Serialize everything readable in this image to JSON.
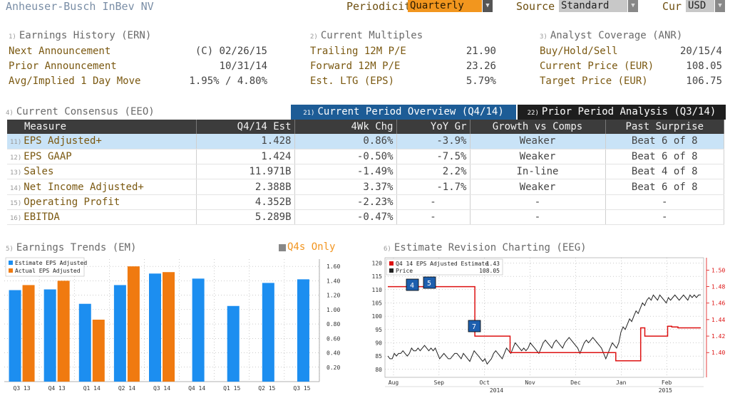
{
  "header": {
    "company": "Anheuser-Busch InBev NV",
    "periodicity_label": "Periodicity",
    "periodicity_value": "Quarterly",
    "source_label": "Source",
    "source_value": "Standard",
    "cur_label": "Cur",
    "cur_value": "USD"
  },
  "earnings_history": {
    "num": "1)",
    "title": "Earnings History (ERN)",
    "rows": [
      {
        "label": "Next Announcement",
        "value": "(C)  02/26/15"
      },
      {
        "label": "Prior Announcement",
        "value": "10/31/14"
      },
      {
        "label": "Avg/Implied 1 Day Move",
        "value": "1.95% / 4.80%"
      }
    ]
  },
  "current_multiples": {
    "num": "2)",
    "title": "Current Multiples",
    "rows": [
      {
        "label": "Trailing 12M P/E",
        "value": "21.90"
      },
      {
        "label": "Forward 12M P/E",
        "value": "23.26"
      },
      {
        "label": "Est. LTG (EPS)",
        "value": "5.79%"
      }
    ]
  },
  "analyst_coverage": {
    "num": "3)",
    "title": "Analyst Coverage (ANR)",
    "rows": [
      {
        "label": "Buy/Hold/Sell",
        "value": "20/15/4"
      },
      {
        "label": "Current Price (EUR)",
        "value": "108.05"
      },
      {
        "label": "Target Price (EUR)",
        "value": "106.75"
      }
    ]
  },
  "consensus": {
    "num": "4)",
    "title": "Current Consensus (EEO)",
    "tab1_num": "21)",
    "tab1_label": "Current Period Overview (Q4/14)",
    "tab2_num": "22)",
    "tab2_label": "Prior Period Analysis (Q3/14)",
    "columns": [
      "Measure",
      "Q4/14 Est",
      "4Wk Chg",
      "YoY Gr",
      "Growth vs Comps",
      "Past Surprise"
    ],
    "rows": [
      {
        "num": "11)",
        "measure": "EPS Adjusted+",
        "est": "1.428",
        "chg": "0.86%",
        "yoy": "-3.9%",
        "comps": "Weaker",
        "surprise": "Beat 6 of 8"
      },
      {
        "num": "12)",
        "measure": "EPS GAAP",
        "est": "1.424",
        "chg": "-0.50%",
        "yoy": "-7.5%",
        "comps": "Weaker",
        "surprise": "Beat 6 of 8"
      },
      {
        "num": "13)",
        "measure": "Sales",
        "est": "11.971B",
        "chg": "-1.49%",
        "yoy": "2.2%",
        "comps": "In-line",
        "surprise": "Beat 4 of 8"
      },
      {
        "num": "14)",
        "measure": "Net Income Adjusted+",
        "est": "2.388B",
        "chg": "3.37%",
        "yoy": "-1.7%",
        "comps": "Weaker",
        "surprise": "Beat 6 of 8"
      },
      {
        "num": "15)",
        "measure": "Operating Profit",
        "est": "4.352B",
        "chg": "-2.23%",
        "yoy": "-",
        "comps": "-",
        "surprise": "-"
      },
      {
        "num": "16)",
        "measure": "EBITDA",
        "est": "5.289B",
        "chg": "-0.47%",
        "yoy": "-",
        "comps": "-",
        "surprise": "-"
      }
    ]
  },
  "trends": {
    "num": "5)",
    "title": "Earnings Trends (EM)",
    "q4s_label": "Q4s Only"
  },
  "revision": {
    "num": "6)",
    "title": "Estimate Revision Charting (EEG)"
  },
  "colors": {
    "estimate": "#1c8ef0",
    "actual": "#f07a10",
    "price": "#222222",
    "revision": "#dd1111"
  },
  "chart_data": [
    {
      "type": "bar",
      "categories": [
        "Q3 13",
        "Q4 13",
        "Q1 14",
        "Q2 14",
        "Q3 14",
        "Q4 14",
        "Q1 15",
        "Q2 15",
        "Q3 15"
      ],
      "series": [
        {
          "name": "Estimate EPS Adjusted",
          "values": [
            1.27,
            1.28,
            1.08,
            1.34,
            1.5,
            1.43,
            1.05,
            1.37,
            1.42
          ]
        },
        {
          "name": "Actual EPS Adjusted",
          "values": [
            1.34,
            1.4,
            0.86,
            1.6,
            1.52,
            null,
            null,
            null,
            null
          ]
        }
      ],
      "ylim": [
        0,
        1.7
      ],
      "yticks": [
        "0.20",
        "0.40",
        "0.60",
        "0.80",
        "1.00",
        "1.20",
        "1.40",
        "1.60"
      ],
      "grid": true,
      "legend": "top-left"
    },
    {
      "type": "line",
      "x_labels": [
        "Aug",
        "Sep",
        "Oct",
        "Nov",
        "Dec",
        "Jan",
        "Feb"
      ],
      "years": [
        "2014",
        "2015"
      ],
      "series": [
        {
          "name": "Q4 14 EPS Adjusted Estimate",
          "last": "1.43",
          "axis": "right",
          "values": [
            1.48,
            1.48,
            1.48,
            1.48,
            1.48,
            1.48,
            1.48,
            1.48,
            1.48,
            1.48,
            1.48,
            1.48,
            1.48,
            1.48,
            1.48,
            1.48,
            1.48,
            1.48,
            1.48,
            1.48,
            1.48,
            1.48,
            1.48,
            1.48,
            1.48,
            1.48,
            1.48,
            1.48,
            1.48,
            1.48,
            1.48,
            1.48,
            1.48,
            1.48,
            1.48,
            1.48,
            1.48,
            1.48,
            1.48,
            1.48,
            1.48,
            1.48,
            1.42,
            1.42,
            1.42,
            1.42,
            1.42,
            1.42,
            1.42,
            1.42,
            1.42,
            1.42,
            1.42,
            1.42,
            1.42,
            1.42,
            1.42,
            1.42,
            1.42,
            1.4,
            1.4,
            1.4,
            1.4,
            1.4,
            1.4,
            1.4,
            1.4,
            1.4,
            1.4,
            1.4,
            1.4,
            1.4,
            1.4,
            1.4,
            1.4,
            1.4,
            1.4,
            1.4,
            1.4,
            1.4,
            1.4,
            1.4,
            1.4,
            1.4,
            1.4,
            1.4,
            1.4,
            1.4,
            1.4,
            1.4,
            1.4,
            1.4,
            1.4,
            1.4,
            1.4,
            1.4,
            1.4,
            1.4,
            1.4,
            1.4,
            1.4,
            1.4,
            1.4,
            1.4,
            1.4,
            1.4,
            1.4,
            1.4,
            1.4,
            1.4,
            1.39,
            1.39,
            1.39,
            1.39,
            1.39,
            1.39,
            1.39,
            1.39,
            1.39,
            1.39,
            1.39,
            1.39,
            1.43,
            1.43,
            1.42,
            1.42,
            1.42,
            1.42,
            1.42,
            1.42,
            1.42,
            1.42,
            1.42,
            1.42,
            1.42,
            1.432,
            1.432,
            1.431,
            1.431,
            1.431,
            1.43,
            1.43,
            1.43,
            1.43,
            1.43,
            1.43,
            1.43,
            1.43,
            1.43,
            1.43,
            1.43,
            1.43
          ]
        },
        {
          "name": "Price",
          "last": "108.05",
          "axis": "left",
          "values": [
            85,
            84,
            84,
            86,
            85,
            86,
            86,
            87,
            86,
            85,
            86,
            88,
            87,
            87,
            88,
            87,
            88,
            89,
            88,
            87,
            88,
            87,
            88,
            86,
            84,
            85,
            86,
            85,
            84,
            84,
            85,
            86,
            86,
            85,
            84,
            86,
            85,
            84,
            83,
            85,
            87,
            86,
            85,
            84,
            83,
            84,
            82,
            83,
            84,
            86,
            87,
            86,
            85,
            84,
            86,
            88,
            87,
            86,
            88,
            90,
            89,
            88,
            87,
            88,
            87,
            88,
            90,
            89,
            88,
            87,
            86,
            88,
            90,
            91,
            90,
            89,
            88,
            90,
            91,
            90,
            89,
            88,
            90,
            91,
            92,
            91,
            90,
            89,
            88,
            86,
            88,
            90,
            91,
            90,
            91,
            92,
            91,
            90,
            89,
            88,
            86,
            84,
            86,
            88,
            90,
            89,
            88,
            90,
            94,
            96,
            95,
            97,
            99,
            98,
            100,
            102,
            101,
            103,
            105,
            104,
            106,
            107,
            106,
            108,
            107,
            106,
            108,
            107,
            106,
            105,
            107,
            106,
            107,
            108,
            107,
            106,
            107,
            108,
            107,
            106,
            108,
            107,
            108,
            107,
            108,
            108
          ]
        }
      ],
      "ylim_left": [
        77,
        122
      ],
      "yticks_left": [
        "80",
        "85",
        "90",
        "95",
        "100",
        "105",
        "110",
        "115",
        "120"
      ],
      "ylim_right": [
        1.37,
        1.515
      ],
      "yticks_right": [
        "1.40",
        "1.42",
        "1.44",
        "1.46",
        "1.48",
        "1.50"
      ],
      "markers": [
        "4",
        "5",
        "7"
      ],
      "legend": "top-left",
      "grid": true
    }
  ]
}
